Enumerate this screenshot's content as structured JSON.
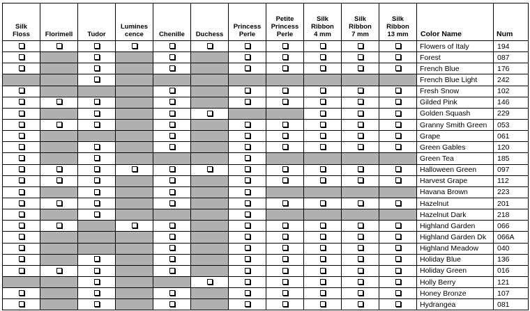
{
  "headers": [
    "Silk\nFloss",
    "Florimell",
    "Tudor",
    "Lumines\ncence",
    "Chenille",
    "Duchess",
    "Princess\nPerle",
    "Petite\nPrincess\nPerle",
    "Silk\nRibbon\n4 mm",
    "Silk\nRibbon\n7 mm",
    "Silk\nRibbon\n13 mm",
    "Color Name",
    "Num"
  ],
  "rows": [
    {
      "name": "Flowers of Italy",
      "num": "194",
      "avail": "11111111111"
    },
    {
      "name": "Forest",
      "num": "087",
      "avail": "10101011111"
    },
    {
      "name": "French Blue",
      "num": "176",
      "avail": "10101011111"
    },
    {
      "name": "French Blue Light",
      "num": "242",
      "avail": "00100000000"
    },
    {
      "name": "Fresh Snow",
      "num": "102",
      "avail": "10001011111"
    },
    {
      "name": "Gilded Pink",
      "num": "146",
      "avail": "11101011111"
    },
    {
      "name": "Golden Squash",
      "num": "229",
      "avail": "10101100111"
    },
    {
      "name": "Granny Smith Green",
      "num": "053",
      "avail": "11101011111"
    },
    {
      "name": "Grape",
      "num": "061",
      "avail": "10001011111"
    },
    {
      "name": "Green Gables",
      "num": "120",
      "avail": "10101011111"
    },
    {
      "name": "Green Tea",
      "num": "185",
      "avail": "10100010000"
    },
    {
      "name": "Halloween Green",
      "num": "097",
      "avail": "11111111111"
    },
    {
      "name": "Harvest Grape",
      "num": "112",
      "avail": "11101011111"
    },
    {
      "name": "Havana Brown",
      "num": "223",
      "avail": "10101010000"
    },
    {
      "name": "Hazelnut",
      "num": "201",
      "avail": "11101011111"
    },
    {
      "name": "Hazelnut Dark",
      "num": "218",
      "avail": "10100010000"
    },
    {
      "name": "Highland Garden",
      "num": "066",
      "avail": "11011011111"
    },
    {
      "name": "Highland Garden Dk",
      "num": "066A",
      "avail": "10001011111"
    },
    {
      "name": "Highland Meadow",
      "num": "040",
      "avail": "10001011111"
    },
    {
      "name": "Holiday Blue",
      "num": "136",
      "avail": "10101011111"
    },
    {
      "name": "Holiday Green",
      "num": "016",
      "avail": "11101011111"
    },
    {
      "name": "Holly Berry",
      "num": "121",
      "avail": "00100111111"
    },
    {
      "name": "Honey Bronze",
      "num": "107",
      "avail": "10101011111"
    },
    {
      "name": "Hydrangea",
      "num": "081",
      "avail": "10101011111"
    }
  ],
  "colors": {
    "unavailable": "#b0b0b0",
    "border": "#000000"
  }
}
